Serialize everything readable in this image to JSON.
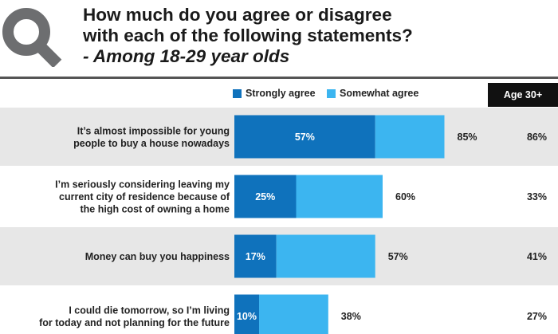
{
  "header": {
    "title_line1": "How much do you agree or disagree",
    "title_line2": "with each of the following statements?",
    "title_line3": "- Among 18-29 year olds"
  },
  "logo": {
    "icon": "magnifier-logo-icon",
    "color": "#6d6e70"
  },
  "colors": {
    "strong": "#0f72bc",
    "somewhat": "#3cb5f0",
    "band": "#e7e7e7"
  },
  "age_column": {
    "header": "Age 30+"
  },
  "chart_data": {
    "type": "bar",
    "orientation": "horizontal",
    "stacked": true,
    "title": "How much do you agree or disagree with each of the following statements? - Among 18-29 year olds",
    "categories": [
      [
        "It’s almost impossible for young",
        "people to buy a house nowadays"
      ],
      [
        "I’m seriously considering leaving my",
        "current city of residence because of",
        "the high cost of owning a home"
      ],
      [
        "Money can buy you happiness"
      ],
      [
        "I could die tomorrow, so I’m living",
        "for today and not planning for the future"
      ]
    ],
    "series": [
      {
        "name": "Strongly agree",
        "values": [
          57,
          25,
          17,
          10
        ],
        "labels": [
          "57%",
          "25%",
          "17%",
          "10%"
        ]
      },
      {
        "name": "Somewhat agree",
        "values": [
          28,
          35,
          40,
          28
        ]
      }
    ],
    "totals": [
      "85%",
      "60%",
      "57%",
      "38%"
    ],
    "age_30_plus": [
      "86%",
      "33%",
      "41%",
      "27%"
    ],
    "xlim": [
      0,
      100
    ],
    "grid": false,
    "legend": "top"
  }
}
